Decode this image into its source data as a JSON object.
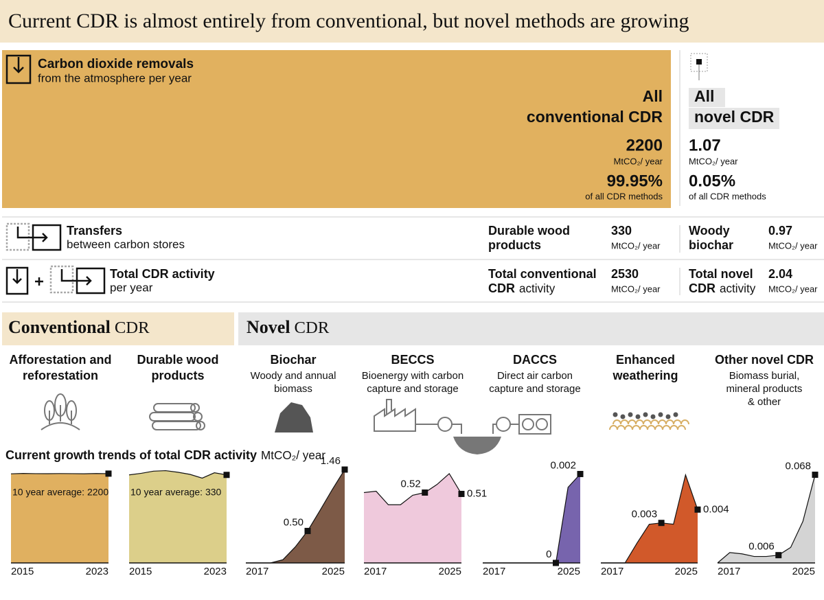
{
  "header": {
    "title": "Current CDR is almost entirely from conventional, but novel methods are growing"
  },
  "removals": {
    "label": "Carbon dioxide removals",
    "sublabel": "from the atmosphere per year",
    "conventional": {
      "name": [
        "All",
        "conventional CDR"
      ],
      "value": 2200,
      "unit": "MtCO₂/ year",
      "share": "99.95%",
      "share_label": "of all CDR methods"
    },
    "novel": {
      "name": [
        "All",
        "novel CDR"
      ],
      "value": 1.07,
      "unit": "MtCO₂/ year",
      "share": "0.05%",
      "share_label": "of all CDR methods"
    }
  },
  "transfers": {
    "label": "Transfers",
    "sublabel": "between carbon stores",
    "conventional": {
      "name": [
        [
          {
            "text": "Durable wood",
            "weight": "bold"
          }
        ],
        [
          {
            "text": "products",
            "weight": "bold"
          }
        ]
      ],
      "value": 330,
      "unit": "MtCO₂/ year"
    },
    "novel": {
      "name": [
        [
          {
            "text": "Woody",
            "weight": "bold"
          }
        ],
        [
          {
            "text": "biochar",
            "weight": "bold"
          }
        ]
      ],
      "value": 0.97,
      "unit": "MtCO₂/ year"
    }
  },
  "total": {
    "label": "Total CDR activity",
    "sublabel": "per year",
    "conventional": {
      "name": [
        [
          {
            "text": "Total conventional",
            "weight": "bold"
          }
        ],
        [
          {
            "text": "CDR",
            "weight": "bold"
          },
          {
            "text": "activity",
            "weight": "normal"
          }
        ]
      ],
      "value": 2530,
      "unit": "MtCO₂/ year"
    },
    "novel": {
      "name": [
        [
          {
            "text": "Total novel",
            "weight": "bold"
          }
        ],
        [
          {
            "text": "CDR",
            "weight": "bold"
          },
          {
            "text": "activity",
            "weight": "normal"
          }
        ]
      ],
      "value": 2.04,
      "unit": "MtCO₂/ year"
    }
  },
  "sections": {
    "conventional": [
      [
        {
          "text": "Conventional",
          "weight": "bold"
        },
        {
          "text": "CDR",
          "weight": "normal"
        }
      ]
    ],
    "novel": [
      [
        {
          "text": "Novel",
          "weight": "bold"
        },
        {
          "text": "CDR",
          "weight": "normal"
        }
      ]
    ]
  },
  "methods": [
    {
      "name": [
        "Afforestation and",
        "reforestation"
      ]
    },
    {
      "name": [
        "Durable wood",
        "products"
      ]
    },
    {
      "name": [
        "Biochar"
      ],
      "description": [
        "Woody and annual",
        "biomass"
      ]
    },
    {
      "name": [
        "BECCS"
      ],
      "description": [
        "Bioenergy with carbon",
        "capture and storage"
      ]
    },
    {
      "name": [
        "DACCS"
      ],
      "description": [
        "Direct air carbon",
        "capture and storage"
      ]
    },
    {
      "name": [
        "Enhanced",
        "weathering"
      ]
    },
    {
      "name": [
        "Other novel CDR"
      ],
      "description": [
        "Biomass burial,",
        "mineral products",
        "& other"
      ]
    }
  ],
  "charts_title": [
    [
      {
        "text": "Current growth trends of total CDR activity",
        "weight": "bold"
      },
      {
        "text": "MtCO₂/ year",
        "weight": "normal"
      }
    ]
  ],
  "chart_data": [
    {
      "type": "area",
      "color": "#e0b060",
      "x": [
        2015,
        2016,
        2017,
        2018,
        2019,
        2020,
        2021,
        2022,
        2023
      ],
      "values": [
        2195,
        2205,
        2200,
        2198,
        2202,
        2200,
        2197,
        2203,
        2200
      ],
      "xlim": [
        2015,
        2023
      ],
      "ylim": [
        0,
        2300
      ],
      "xticks": [
        2015,
        2023
      ],
      "annotation": "10 year average: 2200"
    },
    {
      "type": "area",
      "color": "#dccf8a",
      "x": [
        2015,
        2016,
        2017,
        2018,
        2019,
        2020,
        2021,
        2022,
        2023
      ],
      "values": [
        330,
        336,
        344,
        346,
        340,
        332,
        318,
        338,
        330
      ],
      "xlim": [
        2015,
        2023
      ],
      "ylim": [
        0,
        350
      ],
      "xticks": [
        2015,
        2023
      ],
      "annotation": "10 year average: 330"
    },
    {
      "type": "area",
      "color": "#7d5a47",
      "x": [
        2017,
        2018,
        2019,
        2020,
        2021,
        2022,
        2023,
        2024,
        2025
      ],
      "values": [
        0,
        0,
        0,
        0.05,
        0.25,
        0.5,
        0.82,
        1.15,
        1.46
      ],
      "value_labels": [
        null,
        null,
        null,
        null,
        null,
        "0.50",
        null,
        null,
        "1.46"
      ],
      "xlim": [
        2017,
        2025
      ],
      "ylim": [
        0,
        1.46
      ],
      "xticks": [
        2017,
        2025
      ]
    },
    {
      "type": "area",
      "color": "#efc9dc",
      "x": [
        2017,
        2018,
        2019,
        2020,
        2021,
        2022,
        2023,
        2024,
        2025
      ],
      "values": [
        0.52,
        0.53,
        0.43,
        0.43,
        0.5,
        0.52,
        0.58,
        0.66,
        0.51
      ],
      "value_labels": [
        null,
        null,
        null,
        null,
        null,
        "0.52",
        null,
        null,
        "0.51"
      ],
      "xlim": [
        2017,
        2025
      ],
      "ylim": [
        0,
        0.69
      ],
      "xticks": [
        2017,
        2025
      ]
    },
    {
      "type": "area",
      "color": "#7764ad",
      "x": [
        2017,
        2018,
        2019,
        2020,
        2021,
        2022,
        2023,
        2024,
        2025
      ],
      "values": [
        0,
        0,
        0,
        0,
        0,
        0,
        0,
        0.0017,
        0.002
      ],
      "value_labels": [
        null,
        null,
        null,
        null,
        null,
        null,
        "0",
        null,
        "0.002"
      ],
      "xlim": [
        2017,
        2025
      ],
      "ylim": [
        0,
        0.0021
      ],
      "xticks": [
        2017,
        2025
      ]
    },
    {
      "type": "area",
      "color": "#d1592a",
      "x": [
        2017,
        2018,
        2019,
        2020,
        2021,
        2022,
        2023,
        2024,
        2025
      ],
      "values": [
        0,
        0,
        0,
        0.0015,
        0.0029,
        0.003,
        0.0029,
        0.0066,
        0.004
      ],
      "value_labels": [
        null,
        null,
        null,
        null,
        null,
        "0.003",
        null,
        null,
        "0.004"
      ],
      "xlim": [
        2017,
        2025
      ],
      "ylim": [
        0,
        0.007
      ],
      "xticks": [
        2017,
        2025
      ]
    },
    {
      "type": "area",
      "color": "#d4d4d4",
      "x": [
        2017,
        2018,
        2019,
        2020,
        2021,
        2022,
        2023,
        2024,
        2025
      ],
      "values": [
        0,
        0.008,
        0.007,
        0.005,
        0.005,
        0.006,
        0.012,
        0.032,
        0.068
      ],
      "value_labels": [
        null,
        null,
        null,
        null,
        null,
        "0.006",
        null,
        null,
        "0.068"
      ],
      "xlim": [
        2017,
        2025
      ],
      "ylim": [
        0,
        0.072
      ],
      "xticks": [
        2017,
        2025
      ]
    }
  ]
}
